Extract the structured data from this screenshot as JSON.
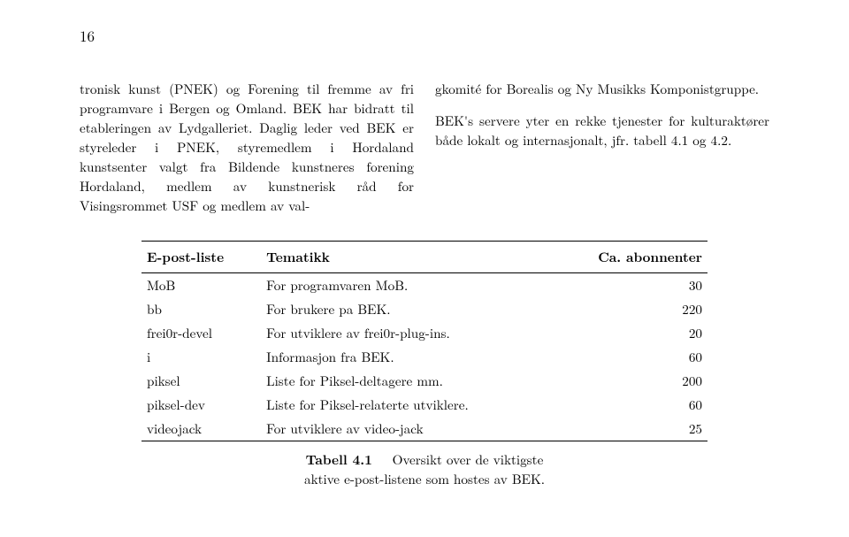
{
  "pageNumber": "16",
  "leftColumn": "tronisk kunst (PNEK) og Forening til fremme av fri programvare i Bergen og Omland. BEK har bidratt til etableringen av Lydgalleriet. Daglig leder ved BEK er styreleder i PNEK, styremedlem i Hordaland kunstsenter valgt fra Bildende kunstneres forening Hordaland, medlem av kunstnerisk råd for Visingsrommet USF og medlem av val-",
  "rightColumn": "gkomité for Borealis og Ny Musikks Komponistgruppe.\n\nBEK's servere yter en rekke tjenester for kulturaktører både lokalt og internasjonalt, jfr. tabell 4.1 og 4.2.",
  "table": {
    "headers": [
      "E-post-liste",
      "Tematikk",
      "Ca. abonnenter"
    ],
    "rows": [
      [
        "MoB",
        "For programvaren MoB.",
        "30"
      ],
      [
        "bb",
        "For brukere pa BEK.",
        "220"
      ],
      [
        "frei0r-devel",
        "For utviklere av frei0r-plug-ins.",
        "20"
      ],
      [
        "i",
        "Informasjon fra BEK.",
        "60"
      ],
      [
        "piksel",
        "Liste for Piksel-deltagere mm.",
        "200"
      ],
      [
        "piksel-dev",
        "Liste for Piksel-relaterte utviklere.",
        "60"
      ],
      [
        "videojack",
        "For utviklere av video-jack",
        "25"
      ]
    ]
  },
  "caption": {
    "label": "Tabell 4.1",
    "line1": "Oversikt over de viktigste",
    "line2": "aktive e-post-listene som hostes av BEK."
  }
}
